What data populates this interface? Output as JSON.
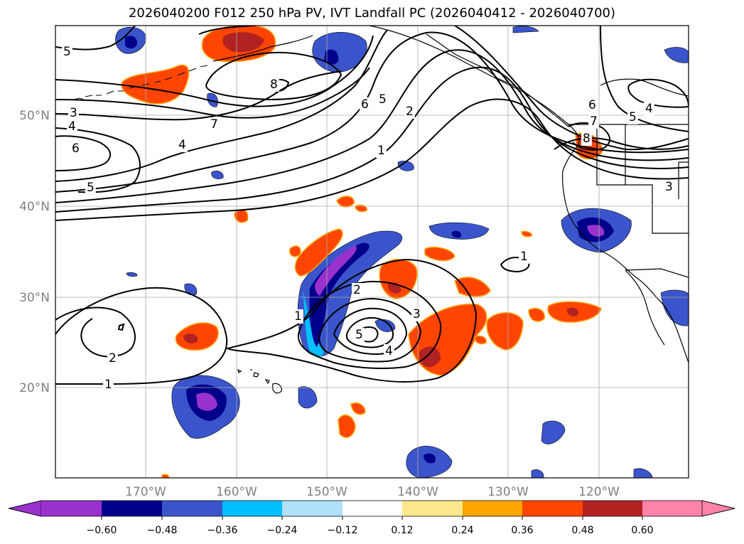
{
  "title": "2026040200 F012 250 hPa PV, IVT Landfall PC (2026040412 - 2026040700)",
  "lat_labels": [
    "50°N",
    "40°N",
    "30°N",
    "20°N"
  ],
  "lon_labels": [
    "170°W",
    "160°W",
    "150°W",
    "140°W",
    "130°W",
    "120°W"
  ],
  "colorbar": {
    "ticks": [
      "−0.60",
      "−0.48",
      "−0.36",
      "−0.24",
      "−0.12",
      "0.12",
      "0.24",
      "0.36",
      "0.48",
      "0.60"
    ],
    "bins": [
      "#9932cc",
      "#00008b",
      "#3a55cc",
      "#00bfff",
      "#b0e0fa",
      "#ffffff",
      "#ffe88c",
      "#ffa500",
      "#ff4500",
      "#b22222",
      "#ff82a8"
    ]
  },
  "contour_labels": [
    "5",
    "3",
    "4",
    "6",
    "5",
    "8",
    "7",
    "4",
    "6",
    "5",
    "2",
    "1",
    "6",
    "5",
    "4",
    "7",
    "8",
    "3",
    "1",
    "2",
    "3",
    "1",
    "5",
    "4",
    "2",
    "1"
  ],
  "colors": {
    "purple": "#9932cc",
    "navy": "#00008b",
    "blue": "#3a55cc",
    "cyan": "#00bfff",
    "yellow": "#ffe88c",
    "orange": "#ffa500",
    "redorange": "#ff4500",
    "darkred": "#b22222"
  }
}
